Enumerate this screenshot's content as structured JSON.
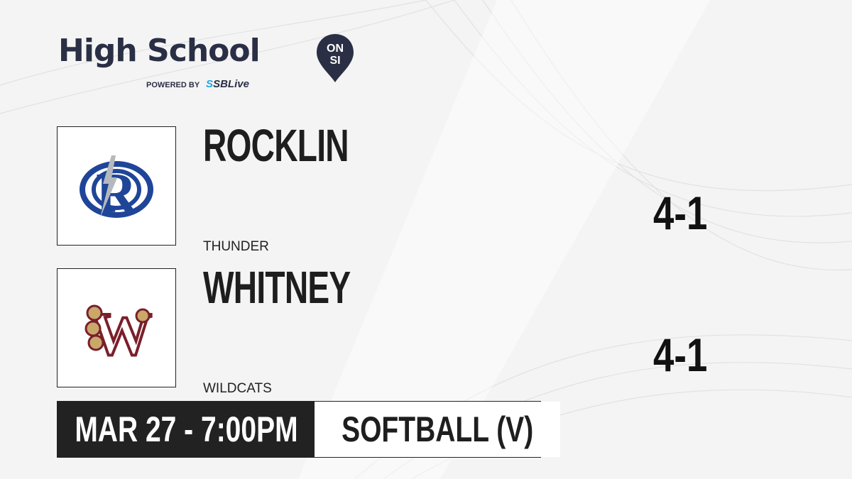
{
  "brand": {
    "title": "High School",
    "badge_top": "ON",
    "badge_bottom": "SI",
    "powered_by": "POWERED BY",
    "partner_prefix": "S",
    "partner": "SBLive"
  },
  "teams": [
    {
      "name": "ROCKLIN",
      "mascot": "THUNDER",
      "score": "4-1",
      "logo": "rocklin-r-lightning-logo",
      "colors": [
        "#1f4598",
        "#b5b9bd"
      ]
    },
    {
      "name": "WHITNEY",
      "mascot": "WILDCATS",
      "score": "4-1",
      "logo": "whitney-w-claw-logo",
      "colors": [
        "#7a1f2b",
        "#c9a86a"
      ]
    }
  ],
  "game": {
    "datetime": "MAR 27 - 7:00PM",
    "sport": "SOFTBALL (V)"
  }
}
